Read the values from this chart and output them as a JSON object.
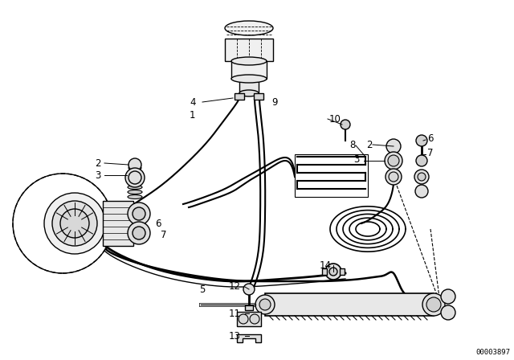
{
  "bg_color": "#ffffff",
  "line_color": "#000000",
  "part_number": "00003897",
  "figsize": [
    6.4,
    4.48
  ],
  "dpi": 100,
  "xlim": [
    0,
    640
  ],
  "ylim": [
    0,
    448
  ]
}
